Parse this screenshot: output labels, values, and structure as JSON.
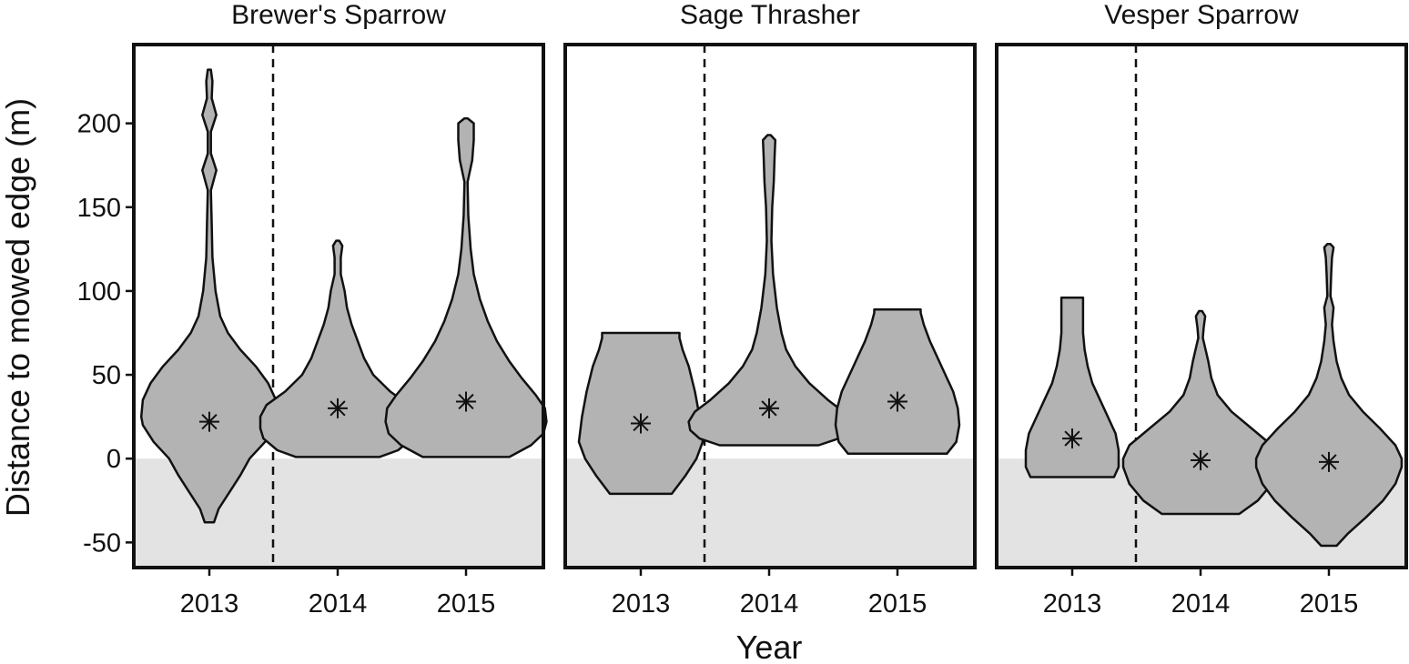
{
  "figure": {
    "ylabel": "Distance to mowed edge (m)",
    "xlabel": "Year"
  },
  "colors": {
    "violin_fill": "#b3b3b3",
    "negative_region": "#e3e3e3",
    "outline": "#111111",
    "background": "#ffffff"
  },
  "chart_data": [
    {
      "type": "violin",
      "title": "Brewer's Sparrow",
      "categories": [
        "2013",
        "2014",
        "2015"
      ],
      "ylim": [
        -65,
        247
      ],
      "yticks": [
        -50,
        0,
        50,
        100,
        150,
        200
      ],
      "ytick_labels": [
        "-50",
        "0",
        "50",
        "100",
        "150",
        "200"
      ],
      "shaded_region": [
        -65,
        0
      ],
      "divider_after_category": "2013",
      "violins": [
        {
          "year": "2013",
          "min": -38,
          "max": 232,
          "mean": 22,
          "profile": [
            [
              -38,
              0.03
            ],
            [
              -30,
              0.06
            ],
            [
              -20,
              0.13
            ],
            [
              -10,
              0.2
            ],
            [
              0,
              0.26
            ],
            [
              10,
              0.36
            ],
            [
              20,
              0.43
            ],
            [
              25,
              0.44
            ],
            [
              35,
              0.43
            ],
            [
              45,
              0.38
            ],
            [
              55,
              0.3
            ],
            [
              65,
              0.2
            ],
            [
              75,
              0.12
            ],
            [
              85,
              0.07
            ],
            [
              100,
              0.04
            ],
            [
              120,
              0.02
            ],
            [
              140,
              0.015
            ],
            [
              160,
              0.01
            ],
            [
              172,
              0.045
            ],
            [
              182,
              0.01
            ],
            [
              195,
              0.01
            ],
            [
              205,
              0.045
            ],
            [
              215,
              0.015
            ],
            [
              225,
              0.02
            ],
            [
              232,
              0.01
            ]
          ]
        },
        {
          "year": "2014",
          "min": 1,
          "max": 130,
          "mean": 30,
          "profile": [
            [
              1,
              0.27
            ],
            [
              5,
              0.39
            ],
            [
              12,
              0.48
            ],
            [
              18,
              0.5
            ],
            [
              25,
              0.5
            ],
            [
              32,
              0.46
            ],
            [
              40,
              0.34
            ],
            [
              50,
              0.23
            ],
            [
              60,
              0.17
            ],
            [
              70,
              0.13
            ],
            [
              80,
              0.09
            ],
            [
              90,
              0.06
            ],
            [
              100,
              0.045
            ],
            [
              110,
              0.02
            ],
            [
              120,
              0.02
            ],
            [
              127,
              0.03
            ],
            [
              130,
              0.01
            ]
          ]
        },
        {
          "year": "2015",
          "min": 1,
          "max": 203,
          "mean": 34,
          "profile": [
            [
              1,
              0.28
            ],
            [
              8,
              0.42
            ],
            [
              15,
              0.5
            ],
            [
              22,
              0.52
            ],
            [
              30,
              0.51
            ],
            [
              38,
              0.45
            ],
            [
              48,
              0.36
            ],
            [
              58,
              0.28
            ],
            [
              70,
              0.2
            ],
            [
              82,
              0.14
            ],
            [
              95,
              0.09
            ],
            [
              110,
              0.05
            ],
            [
              125,
              0.03
            ],
            [
              145,
              0.015
            ],
            [
              165,
              0.01
            ],
            [
              178,
              0.04
            ],
            [
              190,
              0.05
            ],
            [
              200,
              0.05
            ],
            [
              203,
              0.01
            ]
          ]
        }
      ]
    },
    {
      "type": "violin",
      "title": "Sage Thrasher",
      "categories": [
        "2013",
        "2014",
        "2015"
      ],
      "ylim": [
        -65,
        247
      ],
      "yticks": [
        -50,
        0,
        50,
        100,
        150,
        200
      ],
      "shaded_region": [
        -65,
        0
      ],
      "divider_after_category": "2013",
      "violins": [
        {
          "year": "2013",
          "min": -21,
          "max": 75,
          "mean": 21,
          "profile": [
            [
              -21,
              0.2
            ],
            [
              -10,
              0.29
            ],
            [
              0,
              0.36
            ],
            [
              10,
              0.4
            ],
            [
              25,
              0.38
            ],
            [
              40,
              0.35
            ],
            [
              55,
              0.31
            ],
            [
              65,
              0.27
            ],
            [
              72,
              0.25
            ],
            [
              75,
              0.25
            ]
          ]
        },
        {
          "year": "2014",
          "min": 8,
          "max": 193,
          "mean": 30,
          "profile": [
            [
              8,
              0.32
            ],
            [
              12,
              0.45
            ],
            [
              17,
              0.51
            ],
            [
              22,
              0.52
            ],
            [
              28,
              0.48
            ],
            [
              35,
              0.38
            ],
            [
              45,
              0.26
            ],
            [
              55,
              0.17
            ],
            [
              65,
              0.11
            ],
            [
              75,
              0.08
            ],
            [
              90,
              0.05
            ],
            [
              110,
              0.025
            ],
            [
              130,
              0.015
            ],
            [
              150,
              0.02
            ],
            [
              165,
              0.03
            ],
            [
              180,
              0.035
            ],
            [
              190,
              0.04
            ],
            [
              193,
              0.01
            ]
          ]
        },
        {
          "year": "2015",
          "min": 3,
          "max": 89,
          "mean": 34,
          "profile": [
            [
              3,
              0.32
            ],
            [
              10,
              0.38
            ],
            [
              20,
              0.4
            ],
            [
              30,
              0.39
            ],
            [
              40,
              0.36
            ],
            [
              50,
              0.31
            ],
            [
              60,
              0.26
            ],
            [
              70,
              0.21
            ],
            [
              80,
              0.17
            ],
            [
              87,
              0.15
            ],
            [
              89,
              0.15
            ]
          ]
        }
      ]
    },
    {
      "type": "violin",
      "title": "Vesper Sparrow",
      "categories": [
        "2013",
        "2014",
        "2015"
      ],
      "ylim": [
        -65,
        247
      ],
      "yticks": [
        -50,
        0,
        50,
        100,
        150,
        200
      ],
      "shaded_region": [
        -65,
        0
      ],
      "divider_after_category": "2013",
      "violins": [
        {
          "year": "2013",
          "min": -11,
          "max": 96,
          "mean": 12,
          "profile": [
            [
              -11,
              0.27
            ],
            [
              -5,
              0.3
            ],
            [
              5,
              0.3
            ],
            [
              15,
              0.28
            ],
            [
              25,
              0.23
            ],
            [
              35,
              0.18
            ],
            [
              45,
              0.13
            ],
            [
              55,
              0.1
            ],
            [
              65,
              0.08
            ],
            [
              75,
              0.07
            ],
            [
              90,
              0.07
            ],
            [
              96,
              0.07
            ]
          ]
        },
        {
          "year": "2014",
          "min": -33,
          "max": 88,
          "mean": -1,
          "profile": [
            [
              -33,
              0.25
            ],
            [
              -25,
              0.37
            ],
            [
              -15,
              0.46
            ],
            [
              -5,
              0.5
            ],
            [
              0,
              0.5
            ],
            [
              8,
              0.46
            ],
            [
              18,
              0.33
            ],
            [
              28,
              0.2
            ],
            [
              38,
              0.11
            ],
            [
              48,
              0.07
            ],
            [
              58,
              0.05
            ],
            [
              66,
              0.03
            ],
            [
              72,
              0.015
            ],
            [
              78,
              0.02
            ],
            [
              85,
              0.03
            ],
            [
              88,
              0.01
            ]
          ]
        },
        {
          "year": "2015",
          "min": -52,
          "max": 128,
          "mean": -2,
          "profile": [
            [
              -52,
              0.05
            ],
            [
              -45,
              0.12
            ],
            [
              -35,
              0.24
            ],
            [
              -25,
              0.35
            ],
            [
              -15,
              0.43
            ],
            [
              -5,
              0.47
            ],
            [
              0,
              0.47
            ],
            [
              8,
              0.43
            ],
            [
              18,
              0.33
            ],
            [
              28,
              0.22
            ],
            [
              38,
              0.13
            ],
            [
              48,
              0.08
            ],
            [
              58,
              0.05
            ],
            [
              70,
              0.03
            ],
            [
              80,
              0.02
            ],
            [
              90,
              0.03
            ],
            [
              97,
              0.01
            ],
            [
              110,
              0.015
            ],
            [
              120,
              0.02
            ],
            [
              126,
              0.03
            ],
            [
              128,
              0.01
            ]
          ]
        }
      ]
    }
  ]
}
